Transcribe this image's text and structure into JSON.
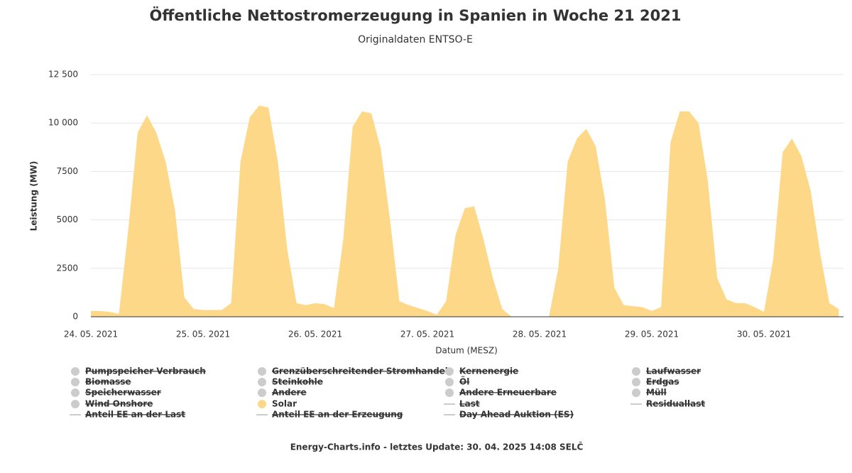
{
  "chart_data": {
    "type": "area",
    "title": "Öffentliche Nettostromerzeugung in Spanien in Woche 21 2021",
    "subtitle": "Originaldaten ENTSO-E",
    "y_label": "Leistung (MW)",
    "x_label": "Datum (MESZ)",
    "footer": "Energy-Charts.info - letztes Update: 30. 04. 2025 14:08 SELČ",
    "categories": [
      "24. 05. 2021",
      null,
      null,
      null,
      null,
      null,
      null,
      null,
      null,
      null,
      null,
      null,
      "25. 05. 2021",
      null,
      null,
      null,
      null,
      null,
      null,
      null,
      null,
      null,
      null,
      null,
      "26. 05. 2021",
      null,
      null,
      null,
      null,
      null,
      null,
      null,
      null,
      null,
      null,
      null,
      "27. 05. 2021",
      null,
      null,
      null,
      null,
      null,
      null,
      null,
      null,
      null,
      null,
      null,
      "28. 05. 2021",
      null,
      null,
      null,
      null,
      null,
      null,
      null,
      null,
      null,
      null,
      null,
      "29. 05. 2021",
      null,
      null,
      null,
      null,
      null,
      null,
      null,
      null,
      null,
      null,
      null,
      "30. 05. 2021",
      null,
      null,
      null,
      null,
      null,
      null,
      null,
      null
    ],
    "series": [
      {
        "name": "Solar",
        "color": "#fdd888",
        "values": [
          300,
          300,
          250,
          150,
          4500,
          9500,
          10400,
          9500,
          8000,
          5500,
          1000,
          400,
          350,
          350,
          350,
          700,
          8000,
          10300,
          10900,
          10800,
          8000,
          3500,
          700,
          600,
          700,
          650,
          450,
          4000,
          9800,
          10600,
          10500,
          8700,
          5000,
          800,
          600,
          450,
          300,
          100,
          800,
          4200,
          5600,
          5700,
          4000,
          2000,
          400,
          0,
          0,
          0,
          0,
          0,
          2500,
          8000,
          9200,
          9700,
          8800,
          6000,
          1500,
          600,
          550,
          500,
          300,
          500,
          9000,
          10600,
          10600,
          10000,
          7000,
          2000,
          900,
          700,
          700,
          500,
          250,
          3000,
          8500,
          9200,
          8300,
          6500,
          3300,
          700,
          400
        ]
      }
    ],
    "ylim": [
      0,
      12500
    ],
    "yticks": [
      0,
      2500,
      5000,
      7500,
      {
        "value": 10000,
        "label": "10 000"
      },
      {
        "value": 12500,
        "label": "12 500"
      }
    ],
    "grid": true,
    "legend_hidden": [
      {
        "name": "Pumpspeicher Verbrauch",
        "symbol": "dot"
      },
      {
        "name": "Grenzüberschreitender Stromhandel",
        "symbol": "dot"
      },
      {
        "name": "Kernenergie",
        "symbol": "dot"
      },
      {
        "name": "Laufwasser",
        "symbol": "dot"
      },
      {
        "name": "Biomasse",
        "symbol": "dot"
      },
      {
        "name": "Steinkohle",
        "symbol": "dot"
      },
      {
        "name": "Öl",
        "symbol": "dot"
      },
      {
        "name": "Erdgas",
        "symbol": "dot"
      },
      {
        "name": "Speicherwasser",
        "symbol": "dot"
      },
      {
        "name": "Andere",
        "symbol": "dot"
      },
      {
        "name": "Andere Erneuerbare",
        "symbol": "dot"
      },
      {
        "name": "Müll",
        "symbol": "dot"
      },
      {
        "name": "Wind Onshore",
        "symbol": "dot"
      },
      {
        "name": "Last",
        "symbol": "line"
      },
      {
        "name": "Residuallast",
        "symbol": "line"
      },
      {
        "name": "Anteil EE an der Last",
        "symbol": "line"
      },
      {
        "name": "Anteil EE an der Erzeugung",
        "symbol": "line"
      },
      {
        "name": "Day Ahead Auktion (ES)",
        "symbol": "line"
      }
    ]
  }
}
